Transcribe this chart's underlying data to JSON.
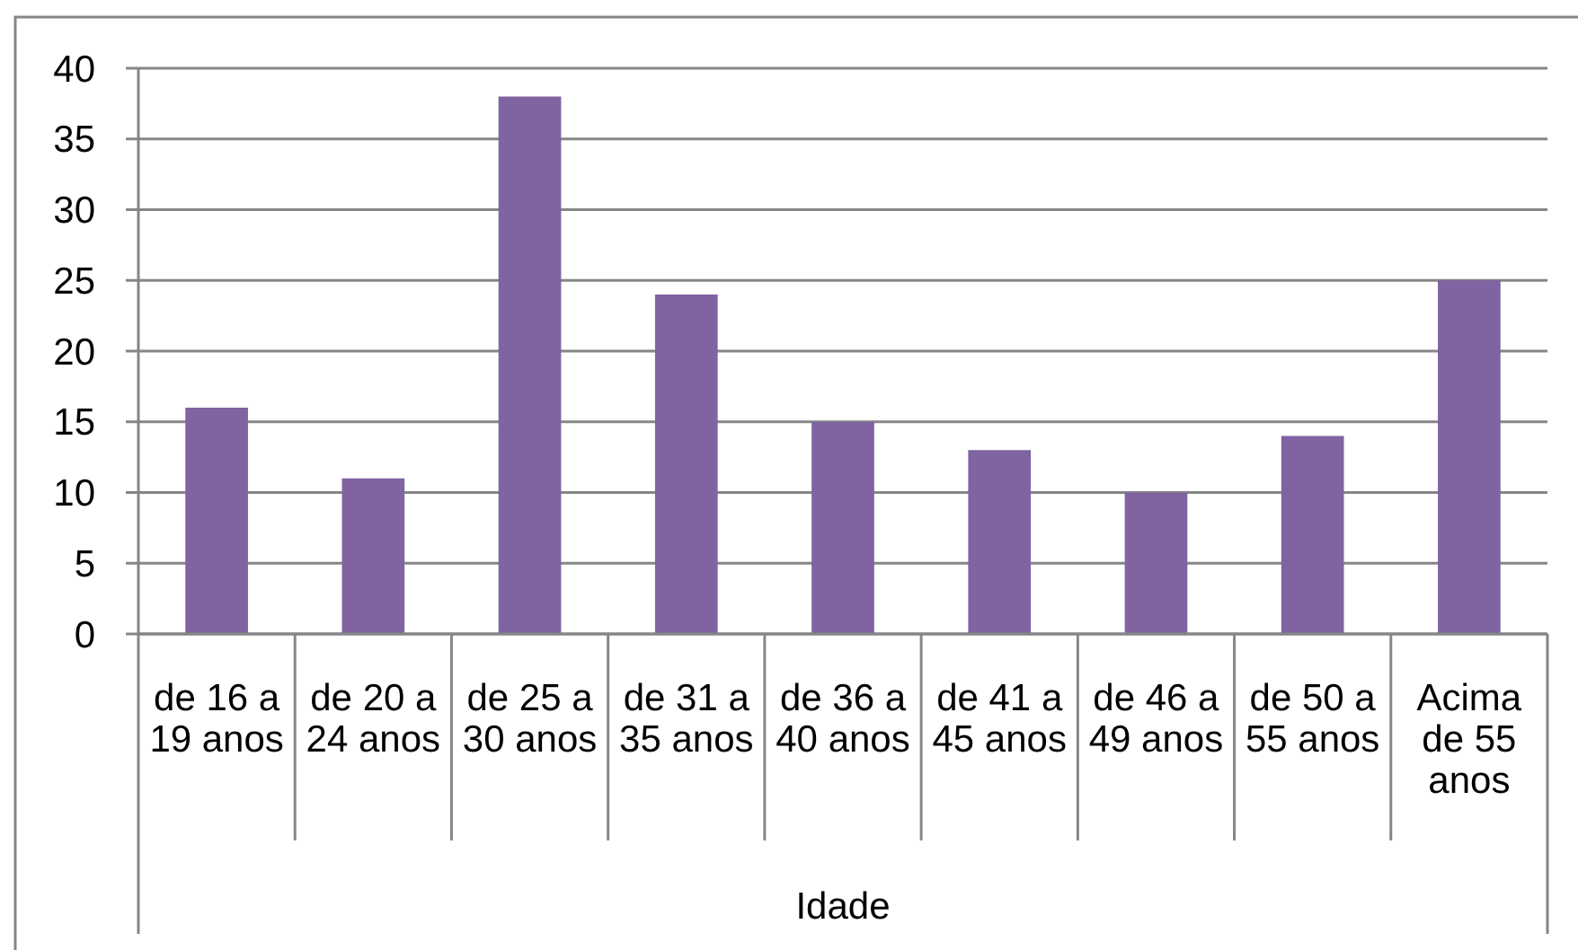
{
  "chart_data": {
    "type": "bar",
    "xlabel": "Idade",
    "categories": [
      "de 16 a 19 anos",
      "de 20 a 24 anos",
      "de 25 a 30 anos",
      "de 31 a 35 anos",
      "de 36 a 40 anos",
      "de 41 a 45 anos",
      "de 46 a 49 anos",
      "de 50 a 55 anos",
      "Acima de 55 anos"
    ],
    "values": [
      16,
      11,
      38,
      24,
      15,
      13,
      10,
      14,
      25
    ],
    "color": "#8064a2",
    "ylim": [
      0,
      40
    ],
    "yticks": [
      0,
      5,
      10,
      15,
      20,
      25,
      30,
      35,
      40
    ],
    "grid": "y"
  }
}
